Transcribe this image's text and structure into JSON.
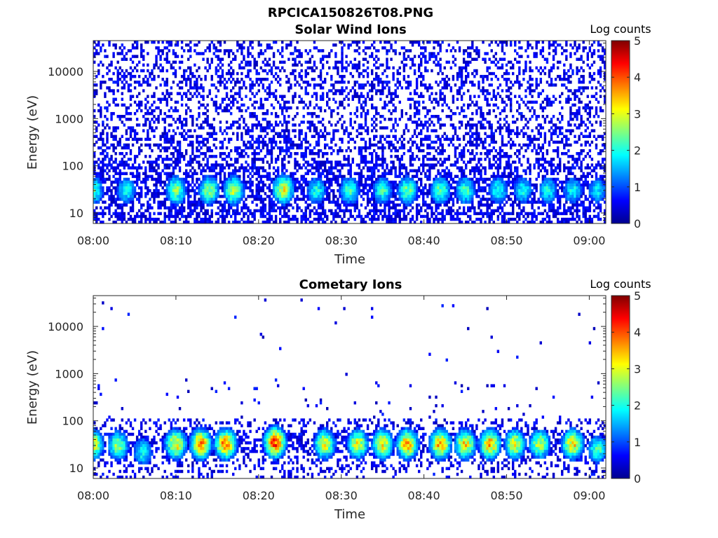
{
  "figure": {
    "title": "RPCICA150826T08.PNG"
  },
  "chart_data": [
    {
      "type": "heatmap",
      "title": "Solar Wind Ions",
      "xlabel": "Time",
      "ylabel": "Energy (eV)",
      "x_range": [
        "08:00",
        "09:02"
      ],
      "x_ticks": [
        "08:00",
        "08:10",
        "08:20",
        "08:30",
        "08:40",
        "08:50",
        "09:00"
      ],
      "y_scale": "log",
      "y_range": [
        6,
        45000
      ],
      "y_ticks": [
        10,
        100,
        1000,
        10000
      ],
      "y_tick_labels": [
        "10",
        "100",
        "1000",
        "10000"
      ],
      "colorbar": {
        "label": "Log counts",
        "range": [
          0,
          5
        ],
        "ticks": [
          "0",
          "1",
          "2",
          "3",
          "4",
          "5"
        ],
        "colormap": "jet"
      },
      "hotspots": [
        {
          "time": "08:00",
          "energy": 30,
          "log_counts": 2.2
        },
        {
          "time": "08:04",
          "energy": 30,
          "log_counts": 1.9
        },
        {
          "time": "08:10",
          "energy": 30,
          "log_counts": 2.5
        },
        {
          "time": "08:14",
          "energy": 30,
          "log_counts": 2.6
        },
        {
          "time": "08:17",
          "energy": 30,
          "log_counts": 2.7
        },
        {
          "time": "08:23",
          "energy": 32,
          "log_counts": 3.0
        },
        {
          "time": "08:27",
          "energy": 30,
          "log_counts": 2.0
        },
        {
          "time": "08:31",
          "energy": 30,
          "log_counts": 2.2
        },
        {
          "time": "08:35",
          "energy": 30,
          "log_counts": 2.1
        },
        {
          "time": "08:38",
          "energy": 30,
          "log_counts": 2.4
        },
        {
          "time": "08:42",
          "energy": 30,
          "log_counts": 2.3
        },
        {
          "time": "08:45",
          "energy": 30,
          "log_counts": 2.2
        },
        {
          "time": "08:49",
          "energy": 30,
          "log_counts": 2.0
        },
        {
          "time": "08:52",
          "energy": 30,
          "log_counts": 1.9
        },
        {
          "time": "08:55",
          "energy": 30,
          "log_counts": 1.9
        },
        {
          "time": "08:58",
          "energy": 30,
          "log_counts": 1.9
        },
        {
          "time": "09:01",
          "energy": 30,
          "log_counts": 1.8
        }
      ]
    },
    {
      "type": "heatmap",
      "title": "Cometary Ions",
      "xlabel": "Time",
      "ylabel": "Energy (eV)",
      "x_range": [
        "08:00",
        "09:02"
      ],
      "x_ticks": [
        "08:00",
        "08:10",
        "08:20",
        "08:30",
        "08:40",
        "08:50",
        "09:00"
      ],
      "y_scale": "log",
      "y_range": [
        6,
        45000
      ],
      "y_ticks": [
        10,
        100,
        1000,
        10000
      ],
      "y_tick_labels": [
        "10",
        "100",
        "1000",
        "10000"
      ],
      "colorbar": {
        "label": "Log counts",
        "range": [
          0,
          5
        ],
        "ticks": [
          "0",
          "1",
          "2",
          "3",
          "4",
          "5"
        ],
        "colormap": "jet"
      },
      "hotspots": [
        {
          "time": "08:00",
          "energy": 32,
          "log_counts": 3.0
        },
        {
          "time": "08:03",
          "energy": 30,
          "log_counts": 2.6
        },
        {
          "time": "08:06",
          "energy": 22,
          "log_counts": 2.0
        },
        {
          "time": "08:10",
          "energy": 32,
          "log_counts": 3.2
        },
        {
          "time": "08:13",
          "energy": 32,
          "log_counts": 3.6
        },
        {
          "time": "08:16",
          "energy": 32,
          "log_counts": 3.7
        },
        {
          "time": "08:22",
          "energy": 35,
          "log_counts": 4.0
        },
        {
          "time": "08:28",
          "energy": 32,
          "log_counts": 3.0
        },
        {
          "time": "08:32",
          "energy": 32,
          "log_counts": 3.0
        },
        {
          "time": "08:35",
          "energy": 32,
          "log_counts": 3.1
        },
        {
          "time": "08:38",
          "energy": 32,
          "log_counts": 3.5
        },
        {
          "time": "08:42",
          "energy": 32,
          "log_counts": 3.5
        },
        {
          "time": "08:45",
          "energy": 32,
          "log_counts": 3.2
        },
        {
          "time": "08:48",
          "energy": 32,
          "log_counts": 3.4
        },
        {
          "time": "08:51",
          "energy": 32,
          "log_counts": 3.0
        },
        {
          "time": "08:54",
          "energy": 32,
          "log_counts": 2.8
        },
        {
          "time": "08:58",
          "energy": 32,
          "log_counts": 3.3
        },
        {
          "time": "09:01",
          "energy": 25,
          "log_counts": 2.2
        }
      ]
    }
  ]
}
